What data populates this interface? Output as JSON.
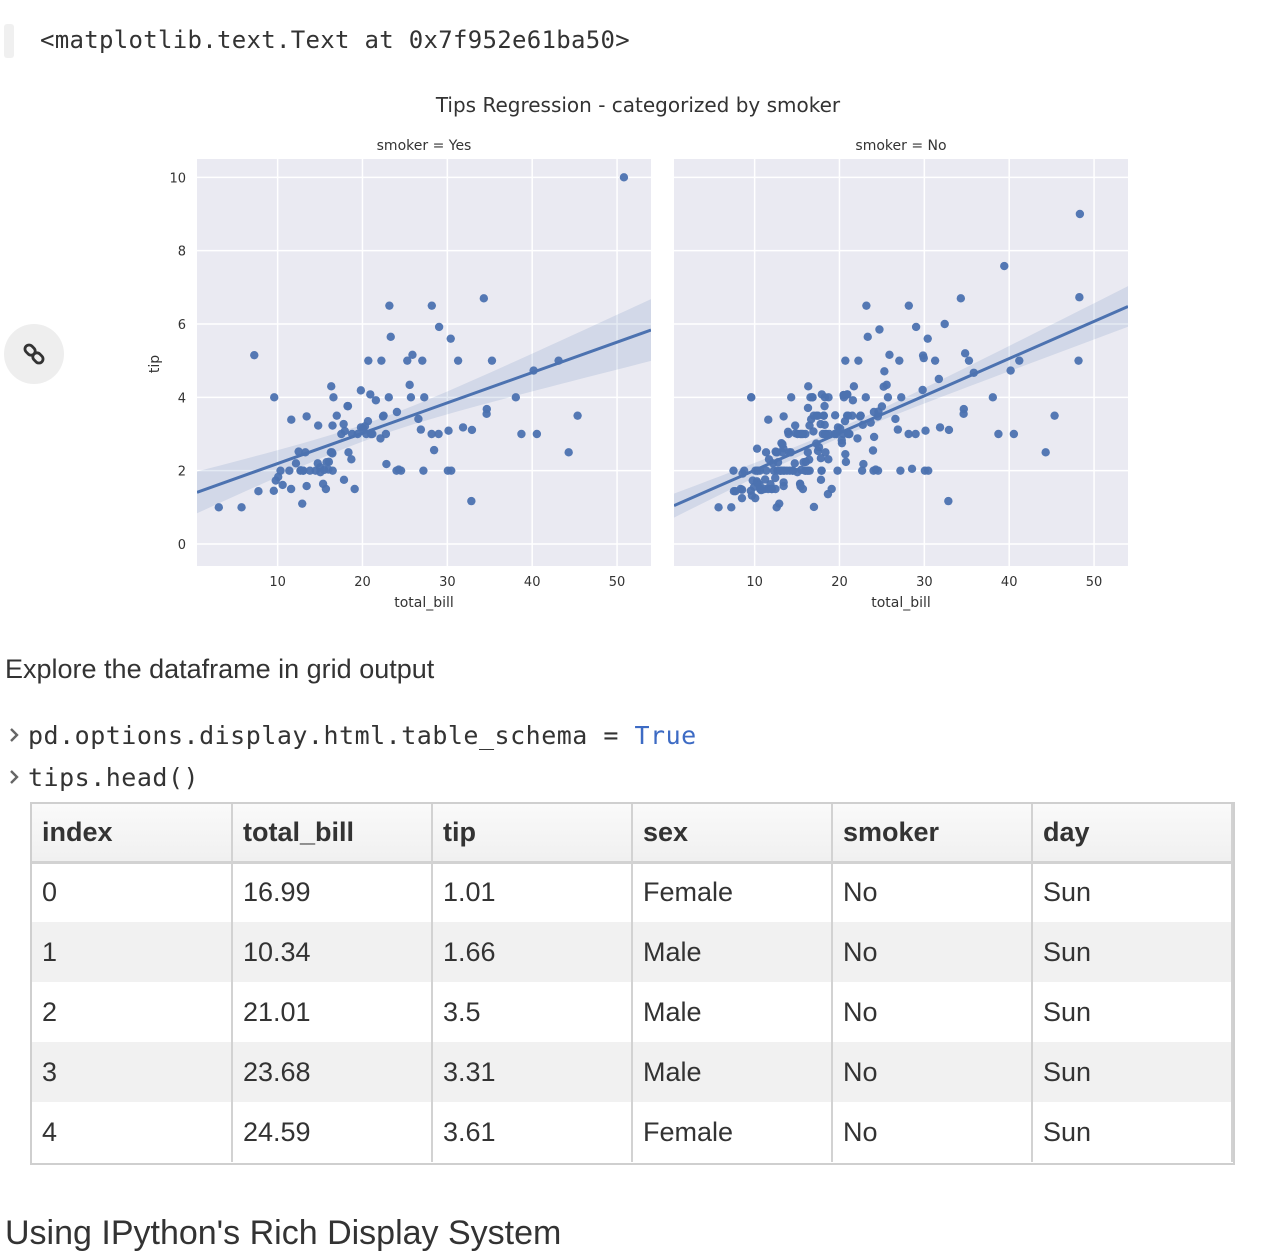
{
  "output_repr": "<matplotlib.text.Text at 0x7f952e61ba50>",
  "link_icon": "link-icon",
  "figure": {
    "suptitle": "Tips Regression - categorized by smoker",
    "ylabel": "tip",
    "y_ticks": [
      "0",
      "2",
      "4",
      "6",
      "8",
      "10"
    ],
    "x_ticks": [
      "10",
      "20",
      "30",
      "40",
      "50"
    ],
    "accent": "#4c72b0",
    "background": "#eaeaf2"
  },
  "chart_data": [
    {
      "type": "scatter",
      "title": "smoker = Yes",
      "xlabel": "total_bill",
      "ylabel": "tip",
      "xlim": [
        0.5,
        54
      ],
      "ylim": [
        -0.6,
        10.5
      ],
      "grid": true,
      "points": [
        [
          3.07,
          1.0
        ],
        [
          5.75,
          1.0
        ],
        [
          7.25,
          5.15
        ],
        [
          7.74,
          1.44
        ],
        [
          9.6,
          4.0
        ],
        [
          10.07,
          1.83
        ],
        [
          10.59,
          1.61
        ],
        [
          11.59,
          1.5
        ],
        [
          12.69,
          2.0
        ],
        [
          13.42,
          1.58
        ],
        [
          13.42,
          3.48
        ],
        [
          13.81,
          2.0
        ],
        [
          14.48,
          2.0
        ],
        [
          14.78,
          3.23
        ],
        [
          15.01,
          2.09
        ],
        [
          15.36,
          1.64
        ],
        [
          15.69,
          1.5
        ],
        [
          16.32,
          4.3
        ],
        [
          16.4,
          2.5
        ],
        [
          16.49,
          2.0
        ],
        [
          16.58,
          4.0
        ],
        [
          16.97,
          3.5
        ],
        [
          17.51,
          3.0
        ],
        [
          17.78,
          3.27
        ],
        [
          18.24,
          3.76
        ],
        [
          18.69,
          2.31
        ],
        [
          18.78,
          3.0
        ],
        [
          19.08,
          1.5
        ],
        [
          19.81,
          4.19
        ],
        [
          19.82,
          3.18
        ],
        [
          20.08,
          3.15
        ],
        [
          20.45,
          3.0
        ],
        [
          20.92,
          4.08
        ],
        [
          21.01,
          3.0
        ],
        [
          21.58,
          3.92
        ],
        [
          22.12,
          2.88
        ],
        [
          22.42,
          3.48
        ],
        [
          22.49,
          3.5
        ],
        [
          22.76,
          3.0
        ],
        [
          22.82,
          2.18
        ],
        [
          23.1,
          4.0
        ],
        [
          23.33,
          5.65
        ],
        [
          24.06,
          3.6
        ],
        [
          25.28,
          5.0
        ],
        [
          25.56,
          4.34
        ],
        [
          25.89,
          5.16
        ],
        [
          26.59,
          3.41
        ],
        [
          27.05,
          5.0
        ],
        [
          27.18,
          2.0
        ],
        [
          27.28,
          4.0
        ],
        [
          28.17,
          6.5
        ],
        [
          28.44,
          2.56
        ],
        [
          28.97,
          3.0
        ],
        [
          30.06,
          2.0
        ],
        [
          30.4,
          5.6
        ],
        [
          31.27,
          5.0
        ],
        [
          32.83,
          1.17
        ],
        [
          34.3,
          6.7
        ],
        [
          34.63,
          3.55
        ],
        [
          34.65,
          3.68
        ],
        [
          38.07,
          4.0
        ],
        [
          40.17,
          4.73
        ],
        [
          43.11,
          5.0
        ],
        [
          44.3,
          2.5
        ],
        [
          45.35,
          3.5
        ],
        [
          50.81,
          10.0
        ],
        [
          15.48,
          2.02
        ],
        [
          12.16,
          2.2
        ],
        [
          13.0,
          2.0
        ],
        [
          10.34,
          2.0
        ],
        [
          9.78,
          1.73
        ],
        [
          11.38,
          2.0
        ],
        [
          14.73,
          2.2
        ],
        [
          16.27,
          2.5
        ],
        [
          24.27,
          2.03
        ],
        [
          24.55,
          2.0
        ],
        [
          25.71,
          4.0
        ],
        [
          30.46,
          2.0
        ],
        [
          31.85,
          3.18
        ],
        [
          32.9,
          3.11
        ],
        [
          35.26,
          5.0
        ],
        [
          38.73,
          3.0
        ],
        [
          40.55,
          3.0
        ],
        [
          12.9,
          1.1
        ],
        [
          13.27,
          2.5
        ],
        [
          17.92,
          3.08
        ],
        [
          19.44,
          3.0
        ],
        [
          22.23,
          5.0
        ],
        [
          23.17,
          6.5
        ],
        [
          26.88,
          3.12
        ],
        [
          28.15,
          3.0
        ],
        [
          29.03,
          5.92
        ],
        [
          30.14,
          3.09
        ],
        [
          15.04,
          1.96
        ],
        [
          16.04,
          2.24
        ],
        [
          16.47,
          3.23
        ],
        [
          18.35,
          2.5
        ],
        [
          20.29,
          3.21
        ],
        [
          21.16,
          3.0
        ],
        [
          12.48,
          2.52
        ],
        [
          17.82,
          1.75
        ],
        [
          24.01,
          2.0
        ],
        [
          15.98,
          2.03
        ],
        [
          18.29,
          3.76
        ],
        [
          12.74,
          2.01
        ],
        [
          20.65,
          3.35
        ],
        [
          11.61,
          3.39
        ],
        [
          9.55,
          1.45
        ],
        [
          13.03,
          2.0
        ],
        [
          15.77,
          2.23
        ],
        [
          16.45,
          2.47
        ],
        [
          20.69,
          5.0
        ]
      ]
    },
    {
      "type": "scatter",
      "title": "smoker = No",
      "xlabel": "total_bill",
      "ylabel": "",
      "xlim": [
        0.5,
        54
      ],
      "ylim": [
        -0.6,
        10.5
      ],
      "grid": true,
      "points": [
        [
          16.99,
          1.01
        ],
        [
          10.34,
          1.66
        ],
        [
          21.01,
          3.5
        ],
        [
          23.68,
          3.31
        ],
        [
          24.59,
          3.61
        ],
        [
          25.29,
          4.71
        ],
        [
          8.77,
          2.0
        ],
        [
          26.88,
          3.12
        ],
        [
          15.04,
          1.96
        ],
        [
          14.78,
          3.23
        ],
        [
          10.27,
          1.71
        ],
        [
          35.26,
          5.0
        ],
        [
          15.42,
          1.57
        ],
        [
          18.43,
          3.0
        ],
        [
          14.83,
          3.02
        ],
        [
          21.58,
          3.92
        ],
        [
          10.33,
          1.67
        ],
        [
          16.29,
          3.71
        ],
        [
          16.97,
          3.5
        ],
        [
          20.65,
          3.35
        ],
        [
          17.92,
          4.08
        ],
        [
          20.29,
          2.75
        ],
        [
          15.77,
          2.23
        ],
        [
          39.42,
          7.58
        ],
        [
          19.82,
          3.18
        ],
        [
          17.81,
          2.34
        ],
        [
          13.37,
          2.0
        ],
        [
          12.69,
          2.0
        ],
        [
          21.7,
          4.3
        ],
        [
          19.65,
          3.0
        ],
        [
          9.55,
          1.45
        ],
        [
          18.35,
          2.5
        ],
        [
          15.06,
          3.0
        ],
        [
          20.69,
          2.45
        ],
        [
          17.78,
          3.27
        ],
        [
          24.06,
          3.6
        ],
        [
          16.31,
          2.0
        ],
        [
          16.93,
          3.07
        ],
        [
          18.69,
          2.31
        ],
        [
          31.27,
          5.0
        ],
        [
          16.04,
          2.24
        ],
        [
          17.46,
          2.54
        ],
        [
          13.94,
          3.06
        ],
        [
          9.68,
          1.32
        ],
        [
          30.4,
          5.6
        ],
        [
          18.29,
          3.0
        ],
        [
          22.23,
          5.0
        ],
        [
          32.4,
          6.0
        ],
        [
          28.55,
          2.05
        ],
        [
          18.04,
          3.0
        ],
        [
          12.54,
          2.5
        ],
        [
          10.29,
          2.6
        ],
        [
          34.81,
          5.2
        ],
        [
          9.94,
          1.56
        ],
        [
          25.56,
          4.34
        ],
        [
          19.49,
          3.51
        ],
        [
          38.07,
          4.0
        ],
        [
          23.95,
          2.55
        ],
        [
          25.71,
          4.0
        ],
        [
          17.31,
          3.5
        ],
        [
          29.93,
          5.07
        ],
        [
          10.65,
          1.5
        ],
        [
          12.43,
          1.8
        ],
        [
          24.08,
          2.92
        ],
        [
          11.69,
          2.31
        ],
        [
          13.42,
          1.68
        ],
        [
          14.26,
          2.5
        ],
        [
          15.95,
          2.0
        ],
        [
          12.48,
          2.52
        ],
        [
          29.8,
          4.2
        ],
        [
          8.52,
          1.48
        ],
        [
          14.52,
          2.0
        ],
        [
          11.38,
          2.0
        ],
        [
          22.82,
          2.18
        ],
        [
          19.08,
          1.5
        ],
        [
          20.27,
          2.83
        ],
        [
          11.17,
          1.5
        ],
        [
          12.26,
          2.0
        ],
        [
          18.26,
          3.25
        ],
        [
          8.51,
          1.25
        ],
        [
          10.33,
          2.0
        ],
        [
          14.15,
          2.0
        ],
        [
          13.16,
          2.75
        ],
        [
          17.47,
          3.5
        ],
        [
          34.3,
          6.7
        ],
        [
          41.19,
          5.0
        ],
        [
          27.05,
          5.0
        ],
        [
          16.43,
          2.3
        ],
        [
          8.35,
          1.5
        ],
        [
          18.64,
          1.36
        ],
        [
          11.87,
          1.63
        ],
        [
          9.78,
          1.73
        ],
        [
          7.51,
          2.0
        ],
        [
          14.07,
          2.5
        ],
        [
          13.13,
          2.0
        ],
        [
          17.26,
          2.74
        ],
        [
          24.55,
          2.0
        ],
        [
          19.77,
          2.0
        ],
        [
          29.85,
          5.14
        ],
        [
          48.17,
          5.0
        ],
        [
          25.0,
          3.75
        ],
        [
          13.39,
          2.61
        ],
        [
          16.49,
          2.0
        ],
        [
          21.5,
          3.5
        ],
        [
          12.66,
          2.5
        ],
        [
          16.21,
          2.0
        ],
        [
          13.81,
          2.0
        ],
        [
          24.52,
          3.48
        ],
        [
          20.76,
          2.24
        ],
        [
          31.71,
          4.5
        ],
        [
          10.59,
          1.61
        ],
        [
          10.63,
          2.0
        ],
        [
          48.27,
          6.73
        ],
        [
          20.53,
          4.0
        ],
        [
          16.47,
          3.23
        ],
        [
          26.59,
          3.41
        ],
        [
          38.73,
          3.0
        ],
        [
          24.27,
          2.03
        ],
        [
          12.76,
          2.23
        ],
        [
          30.06,
          2.0
        ],
        [
          25.89,
          5.16
        ],
        [
          48.33,
          9.0
        ],
        [
          13.27,
          2.5
        ],
        [
          28.17,
          6.5
        ],
        [
          12.9,
          1.1
        ],
        [
          28.15,
          3.0
        ],
        [
          11.59,
          1.5
        ],
        [
          7.74,
          1.44
        ],
        [
          30.14,
          3.09
        ],
        [
          12.16,
          2.2
        ],
        [
          13.42,
          3.48
        ],
        [
          8.58,
          1.92
        ],
        [
          15.98,
          3.0
        ],
        [
          13.42,
          1.58
        ],
        [
          16.27,
          2.5
        ],
        [
          10.09,
          2.0
        ],
        [
          20.45,
          3.0
        ],
        [
          13.28,
          2.72
        ],
        [
          22.12,
          2.88
        ],
        [
          24.01,
          2.0
        ],
        [
          15.69,
          3.0
        ],
        [
          11.61,
          3.39
        ],
        [
          10.77,
          1.47
        ],
        [
          15.53,
          3.0
        ],
        [
          10.07,
          1.25
        ],
        [
          12.6,
          1.0
        ],
        [
          32.83,
          1.17
        ],
        [
          35.83,
          4.67
        ],
        [
          29.03,
          5.92
        ],
        [
          27.18,
          2.0
        ],
        [
          22.67,
          2.0
        ],
        [
          17.82,
          1.75
        ],
        [
          18.78,
          3.0
        ],
        [
          20.08,
          3.15
        ],
        [
          16.0,
          2.0
        ],
        [
          18.71,
          4.0
        ],
        [
          17.59,
          2.64
        ],
        [
          14.31,
          4.0
        ],
        [
          21.16,
          3.0
        ],
        [
          15.36,
          1.64
        ],
        [
          20.49,
          4.06
        ],
        [
          25.21,
          4.29
        ],
        [
          18.15,
          3.5
        ],
        [
          14.0,
          3.0
        ],
        [
          7.56,
          1.44
        ],
        [
          11.24,
          1.76
        ],
        [
          13.0,
          2.0
        ],
        [
          19.44,
          3.0
        ],
        [
          22.49,
          3.5
        ],
        [
          20.92,
          4.08
        ],
        [
          15.48,
          2.02
        ],
        [
          12.03,
          1.5
        ],
        [
          14.73,
          2.2
        ],
        [
          10.34,
          2.0
        ],
        [
          9.6,
          4.0
        ],
        [
          13.51,
          2.0
        ],
        [
          18.24,
          3.76
        ],
        [
          16.82,
          4.0
        ],
        [
          16.66,
          3.4
        ],
        [
          17.89,
          2.0
        ],
        [
          13.03,
          2.0
        ],
        [
          18.28,
          4.0
        ],
        [
          24.71,
          5.85
        ],
        [
          21.16,
          3.0
        ],
        [
          28.97,
          3.0
        ],
        [
          22.49,
          3.5
        ],
        [
          5.75,
          1.0
        ],
        [
          16.32,
          4.3
        ],
        [
          22.75,
          3.25
        ],
        [
          40.17,
          4.73
        ],
        [
          27.28,
          4.0
        ],
        [
          12.03,
          1.5
        ],
        [
          21.01,
          3.0
        ],
        [
          12.46,
          1.5
        ],
        [
          11.35,
          2.5
        ],
        [
          15.38,
          3.0
        ],
        [
          44.3,
          2.5
        ],
        [
          22.42,
          3.48
        ],
        [
          20.92,
          4.08
        ],
        [
          15.36,
          1.64
        ],
        [
          20.49,
          4.06
        ],
        [
          16.58,
          4.0
        ],
        [
          7.25,
          1.0
        ],
        [
          31.85,
          3.18
        ],
        [
          16.82,
          4.0
        ],
        [
          32.9,
          3.11
        ],
        [
          17.89,
          2.0
        ],
        [
          14.48,
          2.0
        ],
        [
          9.6,
          4.0
        ],
        [
          34.63,
          3.55
        ],
        [
          34.65,
          3.68
        ],
        [
          23.33,
          5.65
        ],
        [
          45.35,
          3.5
        ],
        [
          23.17,
          6.5
        ],
        [
          40.55,
          3.0
        ],
        [
          20.69,
          5.0
        ],
        [
          20.9,
          3.5
        ],
        [
          30.46,
          2.0
        ],
        [
          18.15,
          3.5
        ],
        [
          23.1,
          4.0
        ],
        [
          15.69,
          1.5
        ]
      ]
    }
  ],
  "markdown_text": "Explore the dataframe in grid output",
  "code_lines": [
    {
      "code": "pd.options.display.html.table_schema = ",
      "keyword": "True"
    },
    {
      "code": "tips.head()",
      "keyword": ""
    }
  ],
  "table": {
    "columns": [
      "index",
      "total_bill",
      "tip",
      "sex",
      "smoker",
      "day"
    ],
    "rows": [
      [
        "0",
        "16.99",
        "1.01",
        "Female",
        "No",
        "Sun"
      ],
      [
        "1",
        "10.34",
        "1.66",
        "Male",
        "No",
        "Sun"
      ],
      [
        "2",
        "21.01",
        "3.5",
        "Male",
        "No",
        "Sun"
      ],
      [
        "3",
        "23.68",
        "3.31",
        "Male",
        "No",
        "Sun"
      ],
      [
        "4",
        "24.59",
        "3.61",
        "Female",
        "No",
        "Sun"
      ]
    ]
  },
  "next_heading": "Using IPython's Rich Display System"
}
